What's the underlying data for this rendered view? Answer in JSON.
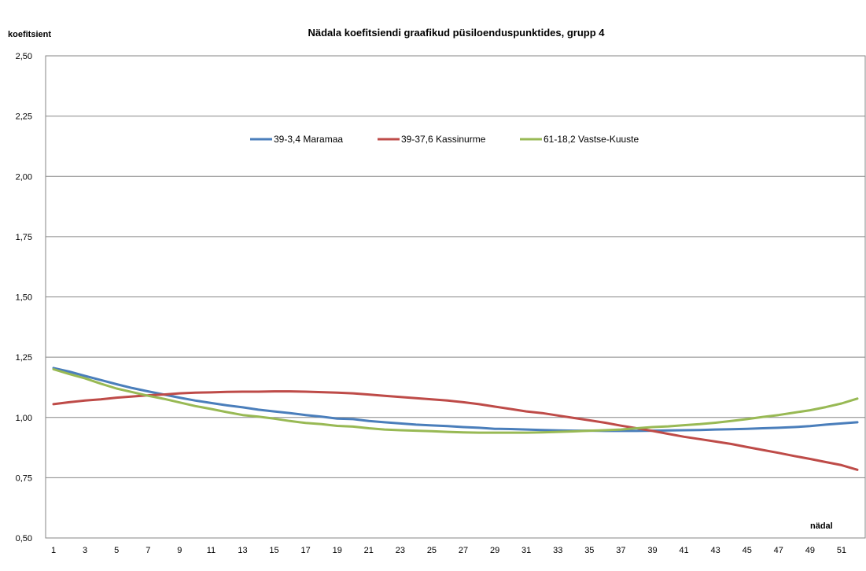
{
  "chart_data": {
    "type": "line",
    "title": "Nädala koefitsiendi graafikud püsiloenduspunktides, grupp 4",
    "ylabel": "koefitsient",
    "xlabel": "nädal",
    "ylim": [
      0.5,
      2.5
    ],
    "yticks": [
      "0,50",
      "0,75",
      "1,00",
      "1,25",
      "1,50",
      "1,75",
      "2,00",
      "2,25",
      "2,50"
    ],
    "yticks_values": [
      0.5,
      0.75,
      1.0,
      1.25,
      1.5,
      1.75,
      2.0,
      2.25,
      2.5
    ],
    "xticks": [
      "1",
      "3",
      "5",
      "7",
      "9",
      "11",
      "13",
      "15",
      "17",
      "19",
      "21",
      "23",
      "25",
      "27",
      "29",
      "31",
      "33",
      "35",
      "37",
      "39",
      "41",
      "43",
      "45",
      "47",
      "49",
      "51"
    ],
    "grid": "horizontal",
    "legend_position": "top-center",
    "x": [
      1,
      2,
      3,
      4,
      5,
      6,
      7,
      8,
      9,
      10,
      11,
      12,
      13,
      14,
      15,
      16,
      17,
      18,
      19,
      20,
      21,
      22,
      23,
      24,
      25,
      26,
      27,
      28,
      29,
      30,
      31,
      32,
      33,
      34,
      35,
      36,
      37,
      38,
      39,
      40,
      41,
      42,
      43,
      44,
      45,
      46,
      47,
      48,
      49,
      50,
      51,
      52
    ],
    "series": [
      {
        "name": "39-3,4 Maramaa",
        "color": "#4a7ebb",
        "values": [
          1.205,
          1.19,
          1.172,
          1.155,
          1.138,
          1.122,
          1.108,
          1.095,
          1.082,
          1.07,
          1.06,
          1.05,
          1.042,
          1.032,
          1.025,
          1.018,
          1.01,
          1.003,
          0.995,
          0.993,
          0.985,
          0.98,
          0.975,
          0.97,
          0.967,
          0.964,
          0.96,
          0.957,
          0.953,
          0.952,
          0.95,
          0.948,
          0.946,
          0.945,
          0.945,
          0.944,
          0.944,
          0.944,
          0.945,
          0.946,
          0.947,
          0.948,
          0.95,
          0.951,
          0.953,
          0.955,
          0.957,
          0.96,
          0.964,
          0.97,
          0.975,
          0.98
        ]
      },
      {
        "name": "39-37,6 Kassinurme",
        "color": "#be4b48",
        "values": [
          1.055,
          1.063,
          1.07,
          1.075,
          1.082,
          1.087,
          1.092,
          1.095,
          1.1,
          1.103,
          1.104,
          1.106,
          1.107,
          1.107,
          1.108,
          1.108,
          1.107,
          1.105,
          1.103,
          1.1,
          1.095,
          1.09,
          1.085,
          1.08,
          1.075,
          1.07,
          1.063,
          1.055,
          1.045,
          1.035,
          1.025,
          1.018,
          1.008,
          0.998,
          0.988,
          0.978,
          0.966,
          0.955,
          0.944,
          0.932,
          0.92,
          0.91,
          0.9,
          0.89,
          0.877,
          0.865,
          0.853,
          0.84,
          0.828,
          0.815,
          0.802,
          0.783
        ]
      },
      {
        "name": "61-18,2 Vastse-Kuuste",
        "color": "#98b954",
        "values": [
          1.2,
          1.18,
          1.162,
          1.14,
          1.12,
          1.105,
          1.09,
          1.077,
          1.062,
          1.047,
          1.035,
          1.022,
          1.01,
          1.003,
          0.995,
          0.985,
          0.977,
          0.972,
          0.965,
          0.962,
          0.955,
          0.95,
          0.947,
          0.945,
          0.943,
          0.94,
          0.938,
          0.937,
          0.937,
          0.937,
          0.937,
          0.938,
          0.94,
          0.942,
          0.945,
          0.947,
          0.95,
          0.955,
          0.96,
          0.963,
          0.968,
          0.972,
          0.978,
          0.985,
          0.993,
          1.002,
          1.01,
          1.02,
          1.03,
          1.043,
          1.058,
          1.078
        ]
      }
    ]
  }
}
